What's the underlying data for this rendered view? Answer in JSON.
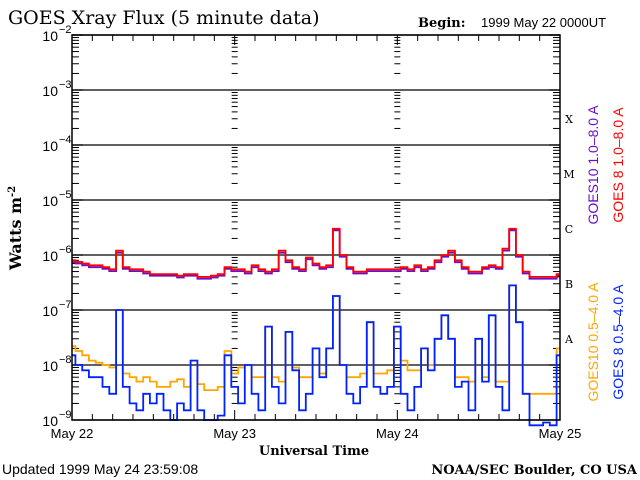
{
  "chart_data": {
    "type": "line",
    "title": "GOES Xray Flux (5 minute data)",
    "begin_label": "Begin:",
    "begin_value": "1999 May 22 0000UT",
    "xlabel": "Universal Time",
    "ylabel": "Watts m",
    "ylabel_exponent": "-2",
    "yscale": "log",
    "ylim": [
      1e-09,
      0.01
    ],
    "xlim_hours": [
      0,
      72
    ],
    "y_ticks": [
      {
        "base": "10",
        "exp": "-2",
        "value": 0.01
      },
      {
        "base": "10",
        "exp": "-3",
        "value": 0.001
      },
      {
        "base": "10",
        "exp": "-4",
        "value": 0.0001
      },
      {
        "base": "10",
        "exp": "-5",
        "value": 1e-05
      },
      {
        "base": "10",
        "exp": "-6",
        "value": 1e-06
      },
      {
        "base": "10",
        "exp": "-7",
        "value": 1e-07
      },
      {
        "base": "10",
        "exp": "-8",
        "value": 1e-08
      },
      {
        "base": "10",
        "exp": "-9",
        "value": 1e-09
      }
    ],
    "x_ticks": [
      {
        "label": "May 22",
        "hour": 0
      },
      {
        "label": "May 23",
        "hour": 24
      },
      {
        "label": "May 24",
        "hour": 48
      },
      {
        "label": "May 25",
        "hour": 72
      }
    ],
    "flare_classes": [
      {
        "label": "X",
        "value": 0.0003
      },
      {
        "label": "M",
        "value": 3e-05
      },
      {
        "label": "C",
        "value": 3e-06
      },
      {
        "label": "B",
        "value": 3e-07
      },
      {
        "label": "A",
        "value": 3e-08
      }
    ],
    "grid": true,
    "legend_placement": "right (vertical)",
    "series": [
      {
        "name": "GOES10 1.0–8.0 A",
        "color": "#6a0dcc",
        "values": [
          7.4e-07,
          7e-07,
          6.5e-07,
          6e-07,
          6e-07,
          5.6e-07,
          5.1e-07,
          1.1e-06,
          5.6e-07,
          5.1e-07,
          5.1e-07,
          4.6e-07,
          4.2e-07,
          4.2e-07,
          4.2e-07,
          4.2e-07,
          3.9e-07,
          4.2e-07,
          4.2e-07,
          3.7e-07,
          3.7e-07,
          3.9e-07,
          4.2e-07,
          5.6e-07,
          5.1e-07,
          5.1e-07,
          4.6e-07,
          6e-07,
          5.1e-07,
          4.6e-07,
          5.1e-07,
          1.1e-06,
          7.4e-07,
          5.6e-07,
          5.1e-07,
          8.4e-07,
          6.5e-07,
          5.6e-07,
          6e-07,
          2.8e-06,
          9.3e-07,
          5.6e-07,
          4.6e-07,
          4.6e-07,
          5.1e-07,
          5.1e-07,
          5.1e-07,
          5.1e-07,
          5.1e-07,
          5.6e-07,
          5.1e-07,
          6e-07,
          5.1e-07,
          5.6e-07,
          7.4e-07,
          9.3e-07,
          1.1e-06,
          7.4e-07,
          5.6e-07,
          4.6e-07,
          4.6e-07,
          5.6e-07,
          6e-07,
          5.6e-07,
          1.2e-06,
          2.8e-06,
          9.3e-07,
          4.6e-07,
          3.7e-07,
          3.7e-07,
          3.7e-07,
          3.7e-07,
          4.2e-07
        ]
      },
      {
        "name": "GOES 8 1.0–8.0 A",
        "color": "#ff0000",
        "values": [
          8e-07,
          7.5e-07,
          7e-07,
          6.5e-07,
          6.5e-07,
          6e-07,
          5.5e-07,
          1.2e-06,
          6e-07,
          5.5e-07,
          5.5e-07,
          5e-07,
          4.5e-07,
          4.5e-07,
          4.5e-07,
          4.5e-07,
          4.2e-07,
          4.5e-07,
          4.5e-07,
          4e-07,
          4e-07,
          4.2e-07,
          4.5e-07,
          6e-07,
          5.5e-07,
          5.5e-07,
          5e-07,
          6.5e-07,
          5.5e-07,
          5e-07,
          5.5e-07,
          1.2e-06,
          8e-07,
          6e-07,
          5.5e-07,
          9e-07,
          7e-07,
          6e-07,
          6.5e-07,
          3e-06,
          1e-06,
          6e-07,
          5e-07,
          5e-07,
          5.5e-07,
          5.5e-07,
          5.5e-07,
          5.5e-07,
          5.5e-07,
          6e-07,
          5.5e-07,
          6.5e-07,
          5.5e-07,
          6e-07,
          8e-07,
          1e-06,
          1.2e-06,
          8e-07,
          6e-07,
          5e-07,
          5e-07,
          6e-07,
          6.5e-07,
          6e-07,
          1.3e-06,
          3e-06,
          1e-06,
          5e-07,
          4e-07,
          4e-07,
          4e-07,
          4e-07,
          4.5e-07
        ]
      },
      {
        "name": "GOES10 0.5–4.0 A",
        "color": "#ffa500",
        "values": [
          2.2e-08,
          1.8e-08,
          1.5e-08,
          1.2e-08,
          1.1e-08,
          1e-08,
          9e-09,
          1e-07,
          7e-09,
          6e-09,
          5e-09,
          6e-09,
          5e-09,
          4e-09,
          4e-09,
          5e-09,
          5.5e-09,
          4e-09,
          1.2e-08,
          4.5e-09,
          3.5e-09,
          3.5e-09,
          4e-09,
          1.8e-08,
          7e-09,
          9e-09,
          1e-08,
          6e-09,
          6e-09,
          5e-08,
          6e-09,
          5e-09,
          4e-08,
          9e-09,
          6e-09,
          6e-09,
          2e-08,
          7e-09,
          2e-08,
          1.8e-07,
          1e-08,
          6e-09,
          6e-09,
          7e-09,
          6e-08,
          7e-09,
          7e-09,
          8e-09,
          5e-08,
          1.2e-08,
          8e-09,
          8e-09,
          2e-08,
          1e-08,
          3e-08,
          8e-08,
          3e-08,
          6e-09,
          6e-09,
          5e-09,
          3e-08,
          6e-09,
          8e-08,
          5e-09,
          5e-09,
          2.8e-07,
          6e-08,
          3e-09,
          3e-09,
          3e-09,
          3e-09,
          3e-09,
          2e-08
        ]
      },
      {
        "name": "GOES 8 0.5–4.0 A",
        "color": "#0022ff",
        "values": [
          1.5e-08,
          1e-08,
          8e-09,
          6e-09,
          6e-09,
          4e-09,
          3e-09,
          1e-07,
          4e-09,
          2e-09,
          1.5e-09,
          3e-09,
          2e-09,
          3e-09,
          1.5e-09,
          1e-09,
          2e-09,
          1.5e-09,
          1.2e-08,
          1.5e-09,
          1e-09,
          1e-09,
          1.2e-09,
          1.5e-08,
          4e-09,
          2e-09,
          1e-08,
          3e-09,
          1.5e-09,
          5e-08,
          4e-09,
          2e-09,
          4e-08,
          8e-09,
          1.5e-09,
          3e-09,
          2e-08,
          6e-09,
          2e-08,
          1.8e-07,
          1e-08,
          3e-09,
          2e-09,
          4e-09,
          6e-08,
          4e-09,
          3e-09,
          4e-09,
          5e-08,
          3e-09,
          1.5e-09,
          4e-09,
          2e-08,
          8e-09,
          3e-08,
          8e-08,
          3e-08,
          4e-09,
          5e-09,
          1.5e-09,
          3e-08,
          5e-09,
          8e-08,
          4e-09,
          1.5e-09,
          2.8e-07,
          6e-08,
          3e-09,
          8e-10,
          8e-10,
          9e-10,
          8e-10,
          1.5e-08
        ]
      }
    ]
  },
  "footer": {
    "updated": "Updated 1999 May 24 23:59:08",
    "credit": "NOAA/SEC Boulder, CO USA"
  }
}
